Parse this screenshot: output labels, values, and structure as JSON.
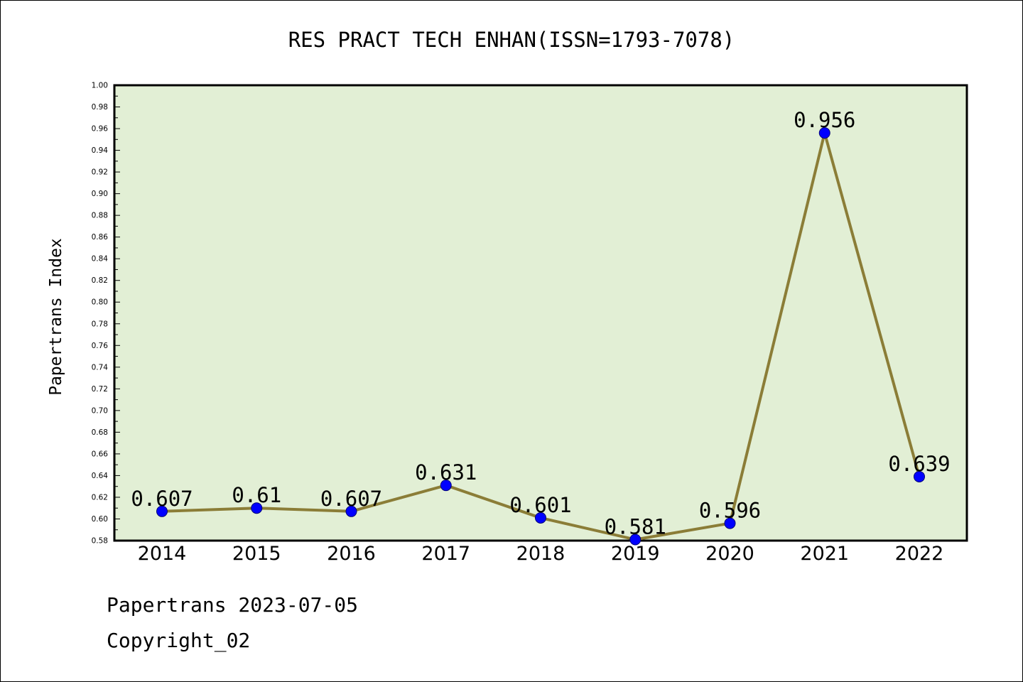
{
  "chart_data": {
    "type": "line",
    "title": "RES PRACT TECH ENHAN(ISSN=1793-7078)",
    "ylabel": "Papertrans Index",
    "xlabel": "",
    "categories": [
      "2014",
      "2015",
      "2016",
      "2017",
      "2018",
      "2019",
      "2020",
      "2021",
      "2022"
    ],
    "values": [
      0.607,
      0.61,
      0.607,
      0.631,
      0.601,
      0.581,
      0.596,
      0.956,
      0.639
    ],
    "data_labels": [
      "0.607",
      "0.61",
      "0.607",
      "0.631",
      "0.601",
      "0.581",
      "0.596",
      "0.956",
      "0.639"
    ],
    "ylim": [
      0.58,
      1.0
    ],
    "yticks": [
      "0.58",
      "0.60",
      "0.62",
      "0.64",
      "0.66",
      "0.68",
      "0.70",
      "0.72",
      "0.74",
      "0.76",
      "0.78",
      "0.80",
      "0.82",
      "0.84",
      "0.86",
      "0.88",
      "0.90",
      "0.92",
      "0.94",
      "0.96",
      "0.98",
      "1.00"
    ],
    "grid": false,
    "colors": {
      "plot_background": "#e2efd5",
      "line": "#8b7d37",
      "marker": "#0000ff"
    }
  },
  "footer": {
    "source": "Papertrans 2023-07-05",
    "copyright": "Copyright_02"
  }
}
